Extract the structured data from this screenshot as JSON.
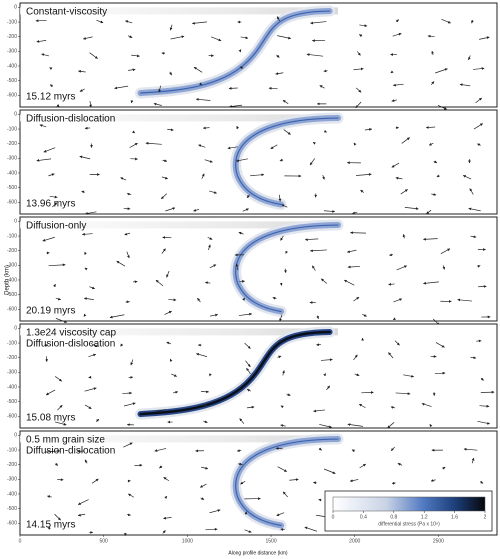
{
  "figure": {
    "panels": [
      {
        "label": [
          "Constant-viscosity"
        ],
        "time": "15.12 myrs"
      },
      {
        "label": [
          "Diffusion-dislocation"
        ],
        "time": "13.96 myrs"
      },
      {
        "label": [
          "Diffusion-only"
        ],
        "time": "20.19 myrs"
      },
      {
        "label": [
          "1.3e24 viscosity cap",
          "Diffusion-dislocation"
        ],
        "time": "15.08 myrs"
      },
      {
        "label": [
          "0.5 mm grain size",
          "Diffusion-dislocation"
        ],
        "time": "14.15 myrs"
      }
    ],
    "y_axis": {
      "label": "Depth (km)",
      "ylim": [
        -680,
        30
      ],
      "yticks": [
        0,
        -100,
        -200,
        -300,
        -400,
        -500,
        -600
      ]
    },
    "x_axis": {
      "label": "Along profile distance (km)",
      "xlim": [
        0,
        2850
      ],
      "xticks": [
        0,
        500,
        1000,
        1500,
        2000,
        2500
      ]
    },
    "colorbar": {
      "label": "differential stress (Pa x 10⁸)",
      "lim": [
        0,
        2
      ],
      "ticks": [
        0,
        0.4,
        0.8,
        1.2,
        1.6,
        2
      ]
    }
  }
}
